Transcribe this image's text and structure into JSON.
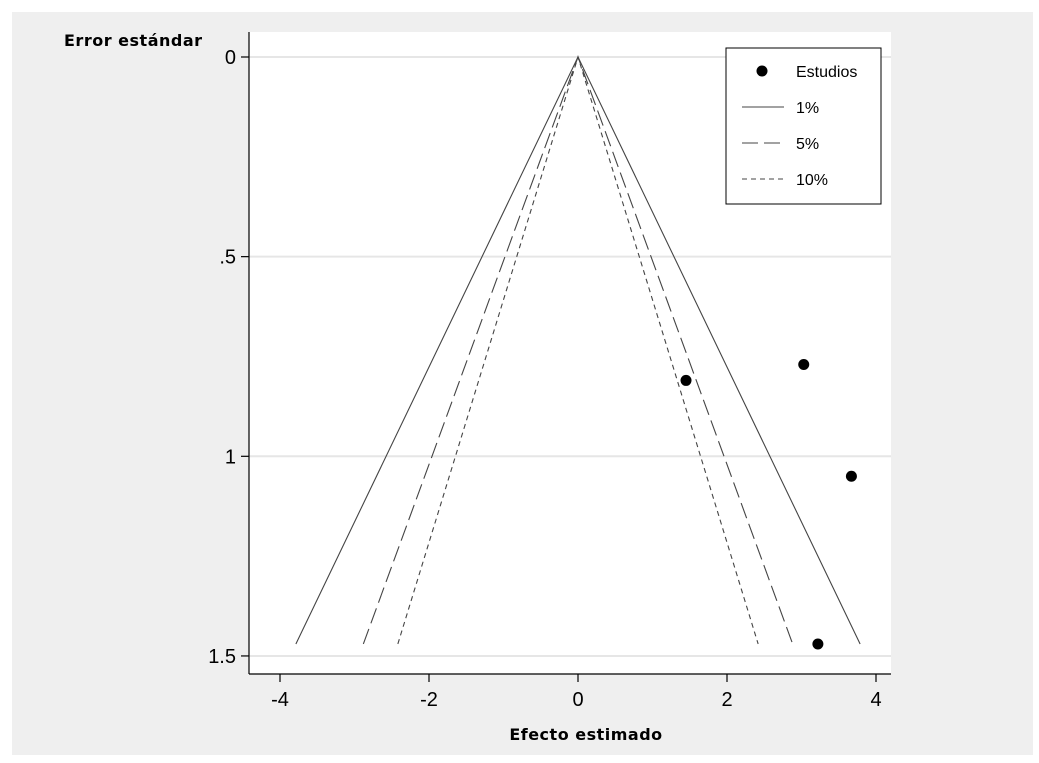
{
  "chart_data": {
    "type": "scatter",
    "subtype": "funnel-plot",
    "title": "",
    "xlabel": "Efecto estimado",
    "ylabel": "Error estándar",
    "xlim": [
      -4.2,
      4.2
    ],
    "ylim": [
      0,
      1.5
    ],
    "y_inverted": true,
    "x_ticks": [
      -4,
      -2,
      0,
      2,
      4
    ],
    "x_tick_labels": [
      "-4",
      "-2",
      "0",
      "2",
      "4"
    ],
    "y_ticks": [
      0,
      0.5,
      1,
      1.5
    ],
    "y_tick_labels": [
      "0",
      ".5",
      "1",
      "1.5"
    ],
    "grid": "horizontal",
    "legend_position": "top-right",
    "series": [
      {
        "name": "Estudios",
        "kind": "points",
        "color": "#000000",
        "points": [
          {
            "x": 1.45,
            "y": 0.81
          },
          {
            "x": 3.03,
            "y": 0.77
          },
          {
            "x": 3.67,
            "y": 1.05
          },
          {
            "x": 3.22,
            "y": 1.47
          }
        ]
      },
      {
        "name": "1%",
        "kind": "contour",
        "z": 2.576,
        "dash": "solid",
        "y_end": 1.47
      },
      {
        "name": "5%",
        "kind": "contour",
        "z": 1.96,
        "dash": "long-dash",
        "y_end": 1.47
      },
      {
        "name": "10%",
        "kind": "contour",
        "z": 1.645,
        "dash": "short-dash",
        "y_end": 1.47
      }
    ],
    "colors": {
      "background": "#efefef",
      "plot_area": "#ffffff",
      "gridline": "#e6e6e6",
      "lines": "#444444"
    }
  }
}
